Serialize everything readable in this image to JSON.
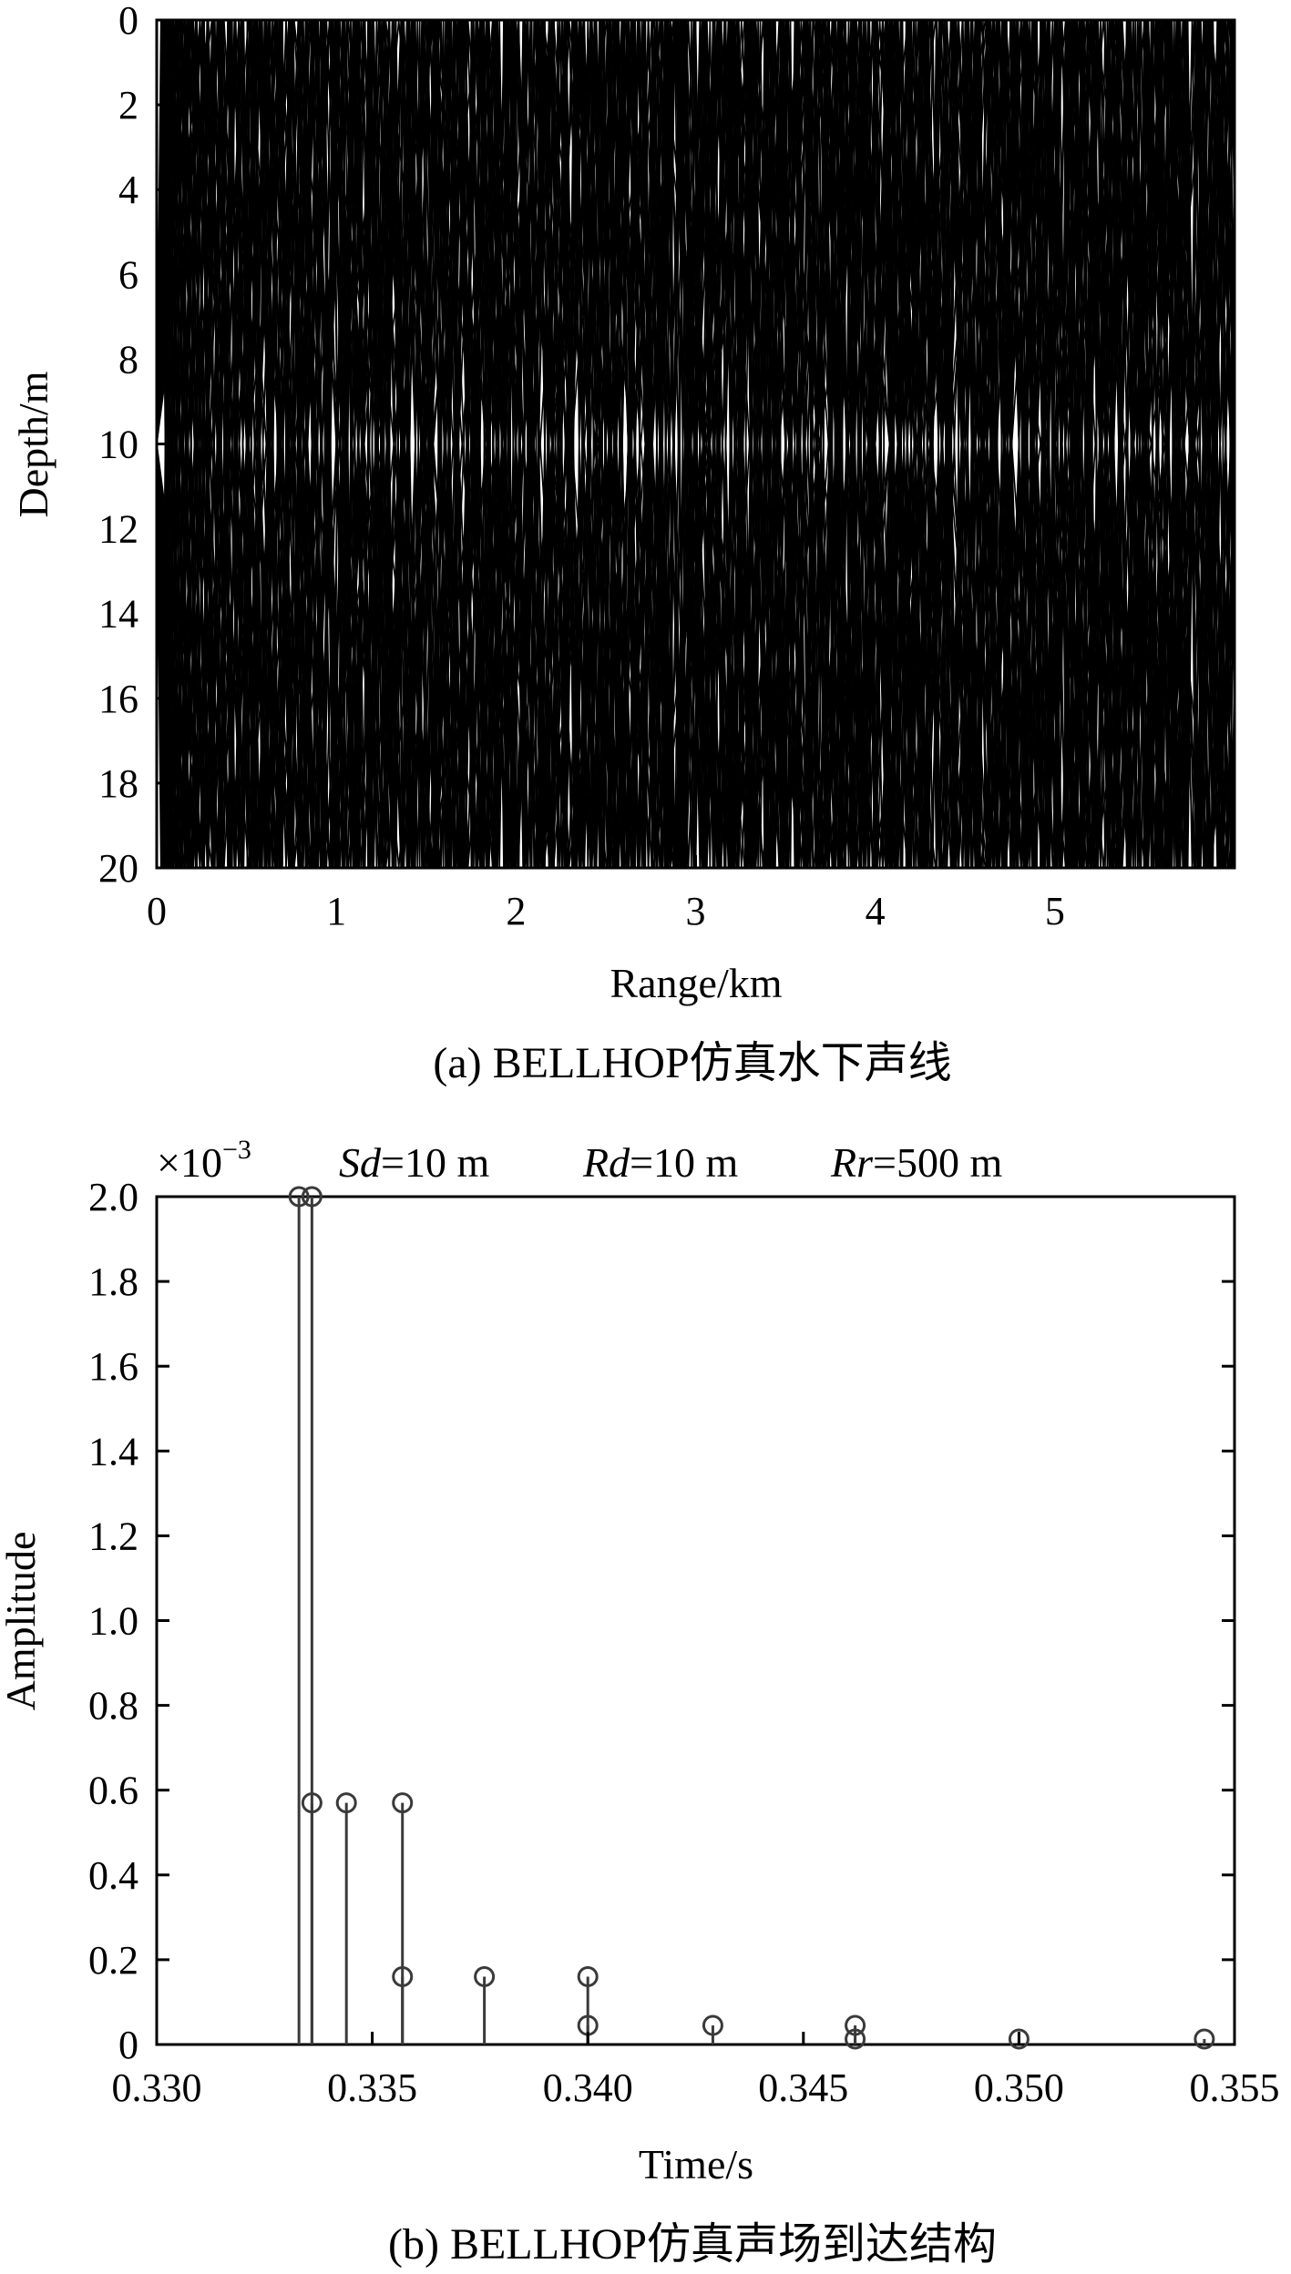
{
  "chart_data": [
    {
      "type": "line",
      "caption": "(a) BELLHOP仿真水下声线",
      "xlabel": "Range/km",
      "ylabel": "Depth/m",
      "xlim": [
        0,
        6
      ],
      "ylim": [
        20,
        0
      ],
      "y_reversed": true,
      "xticks": [
        "0",
        "1",
        "2",
        "3",
        "4",
        "5"
      ],
      "yticks": [
        "0",
        "2",
        "4",
        "6",
        "8",
        "10",
        "12",
        "14",
        "16",
        "18",
        "20"
      ],
      "grid": false,
      "source_depth": 10,
      "water_depth": 20,
      "max_range": 6,
      "ray_half_periods_km": [
        0.615,
        0.51,
        0.44,
        0.385,
        0.34,
        0.305,
        0.275,
        0.25,
        0.23,
        0.21,
        0.19,
        0.175,
        0.16,
        0.148,
        0.136,
        0.125,
        0.115,
        0.105,
        0.096,
        0.088,
        0.08,
        0.072,
        0.064,
        0.056,
        0.048
      ]
    },
    {
      "type": "stem",
      "caption": "(b) BELLHOP仿真声场到达结构",
      "xlabel": "Time/s",
      "ylabel": "Amplitude",
      "scale_label": "×10",
      "scale_exponent": "−3",
      "annotation": [
        {
          "name": "Sd",
          "value": "=10 m"
        },
        {
          "name": "Rd",
          "value": "=10 m"
        },
        {
          "name": "Rr",
          "value": "=500 m"
        }
      ],
      "xlim": [
        0.33,
        0.355
      ],
      "ylim": [
        0,
        2.0
      ],
      "xticks": [
        "0.330",
        "0.335",
        "0.340",
        "0.345",
        "0.350",
        "0.355"
      ],
      "yticks": [
        "0",
        "0.2",
        "0.4",
        "0.6",
        "0.8",
        "1.0",
        "1.2",
        "1.4",
        "1.6",
        "1.8",
        "2.0"
      ],
      "grid": false,
      "x": [
        0.3333,
        0.3336,
        0.3336,
        0.3344,
        0.3357,
        0.3357,
        0.3376,
        0.34,
        0.34,
        0.3429,
        0.3462,
        0.3462,
        0.35,
        0.3543
      ],
      "values": [
        2.0,
        2.0,
        0.57,
        0.57,
        0.57,
        0.16,
        0.16,
        0.16,
        0.045,
        0.045,
        0.045,
        0.013,
        0.013,
        0.013
      ]
    }
  ]
}
